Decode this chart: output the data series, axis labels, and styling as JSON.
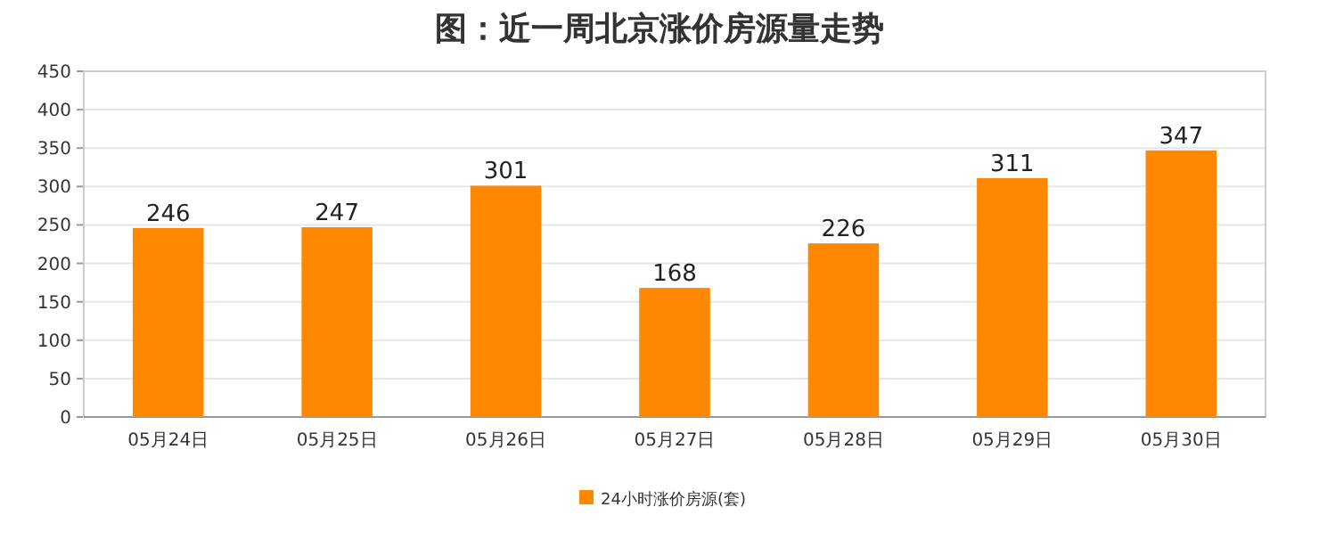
{
  "chart_data": {
    "type": "bar",
    "title": "图：近一周北京涨价房源量走势",
    "categories": [
      "05月24日",
      "05月25日",
      "05月26日",
      "05月27日",
      "05月28日",
      "05月29日",
      "05月30日"
    ],
    "series": [
      {
        "name": "24小时涨价房源(套)",
        "color": "#ff8800",
        "values": [
          246,
          247,
          301,
          168,
          226,
          311,
          347
        ]
      }
    ],
    "ylim": [
      0,
      450
    ],
    "yticks": [
      0,
      50,
      100,
      150,
      200,
      250,
      300,
      350,
      400,
      450
    ],
    "grid": "y",
    "legend": "bottom",
    "data_labels": true
  }
}
